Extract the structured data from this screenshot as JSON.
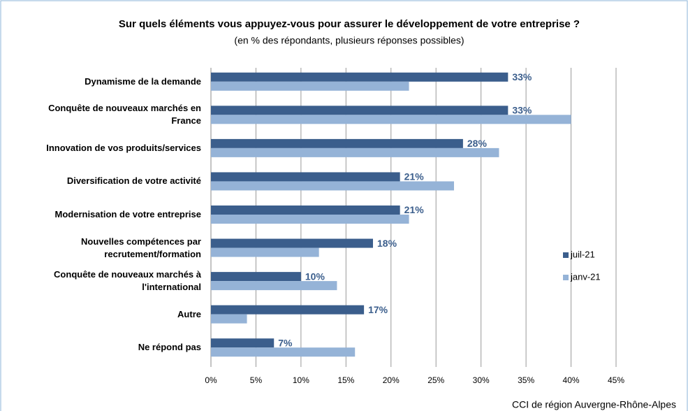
{
  "chart_data": {
    "type": "barh",
    "title": "Sur quels éléments vous appuyez-vous pour assurer le développement de votre entreprise ?",
    "subtitle": "(en % des répondants, plusieurs réponses possibles)",
    "source": "CCI de région Auvergne-Rhône-Alpes",
    "categories": [
      "Dynamisme de la demande",
      "Conquête de nouveaux marchés en France",
      "Innovation de vos produits/services",
      "Diversification de votre activité",
      "Modernisation de votre entreprise",
      "Nouvelles compétences par recrutement/formation",
      "Conquête de nouveaux marchés à l'international",
      "Autre",
      "Ne répond pas"
    ],
    "series": [
      {
        "name": "juil-21",
        "color": "#3b5e8c",
        "values": [
          33,
          33,
          28,
          21,
          21,
          18,
          10,
          17,
          7
        ],
        "value_labels": [
          "33%",
          "33%",
          "28%",
          "21%",
          "21%",
          "18%",
          "10%",
          "17%",
          "7%"
        ]
      },
      {
        "name": "janv-21",
        "color": "#95b3d7",
        "values": [
          22,
          40,
          32,
          27,
          22,
          12,
          14,
          4,
          16
        ]
      }
    ],
    "xlim": [
      0,
      45
    ],
    "xticks": [
      {
        "value": 0,
        "label": "0%"
      },
      {
        "value": 5,
        "label": "5%"
      },
      {
        "value": 10,
        "label": "10%"
      },
      {
        "value": 15,
        "label": "15%"
      },
      {
        "value": 20,
        "label": "20%"
      },
      {
        "value": 25,
        "label": "25%"
      },
      {
        "value": 30,
        "label": "30%"
      },
      {
        "value": 35,
        "label": "35%"
      },
      {
        "value": 40,
        "label": "40%"
      },
      {
        "value": 45,
        "label": "45%"
      }
    ],
    "grid": true,
    "legend": "right"
  }
}
